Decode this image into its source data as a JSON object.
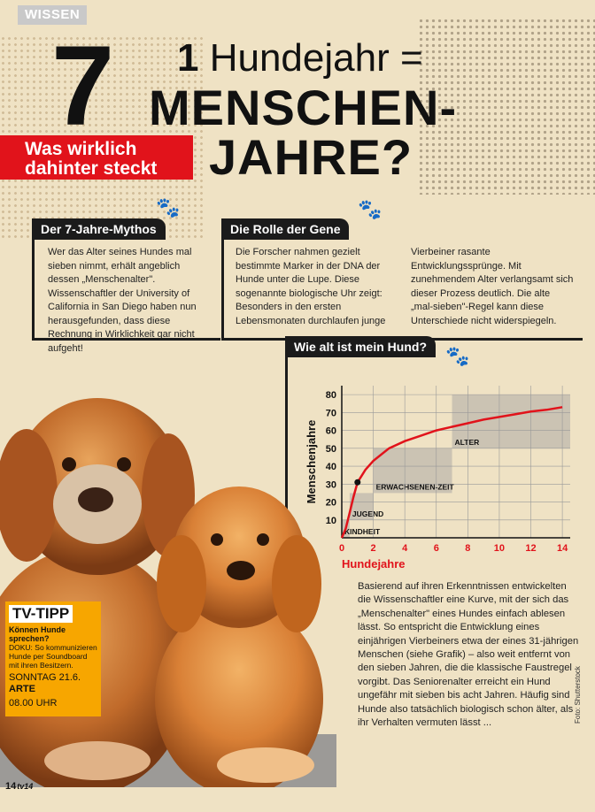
{
  "section": "WISSEN",
  "headline": {
    "number": "7",
    "line1_bold": "1",
    "line1_rest": " Hundejahr =",
    "line2": "MENSCHEN-",
    "line3": "JAHRE?",
    "banner_line1": "Was wirklich",
    "banner_line2": "dahinter steckt"
  },
  "box1": {
    "heading": "Der 7-Jahre-Mythos",
    "text": "Wer das Alter seines Hundes mal sieben nimmt, erhält angeblich dessen „Menschenalter\". Wissenschaftler der University of California in San Diego haben nun herausgefunden, dass diese Rechnung in Wirklichkeit gar nicht aufgeht!"
  },
  "box2": {
    "heading": "Die Rolle der Gene",
    "text_col1": "Die Forscher nahmen gezielt bestimmte Marker in der DNA der Hunde unter die Lupe. Diese sogenannte biologische Uhr zeigt: Besonders in den ersten Lebensmonaten durchlaufen junge",
    "text_col2": "Vierbeiner rasante Entwicklungssprünge. Mit zunehmendem Alter verlangsamt sich dieser Prozess deutlich. Die alte „mal-sieben\"-Regel kann diese Unterschiede nicht widerspiegeln."
  },
  "box3": {
    "heading": "Wie alt ist mein Hund?"
  },
  "chart_data": {
    "type": "line",
    "xlabel": "Hundejahre",
    "ylabel": "Menschenjahre",
    "xlim": [
      0,
      14.5
    ],
    "ylim": [
      0,
      85
    ],
    "xticks": [
      0,
      2,
      4,
      6,
      8,
      10,
      12,
      14
    ],
    "yticks": [
      10,
      20,
      30,
      40,
      50,
      60,
      70,
      80
    ],
    "curve": {
      "x": [
        0,
        0.25,
        0.5,
        0.75,
        1,
        1.5,
        2,
        3,
        4,
        5,
        6,
        7,
        8,
        9,
        10,
        11,
        12,
        13,
        14
      ],
      "y": [
        0,
        5,
        14,
        23,
        31,
        38,
        43,
        50,
        54,
        57,
        60,
        62,
        64,
        66,
        67.5,
        69,
        70.5,
        71.5,
        73
      ]
    },
    "marker": {
      "x": 1,
      "y": 31
    },
    "bands": [
      {
        "label": "KINDHEIT",
        "x": [
          0,
          0.5
        ],
        "y": [
          0,
          10
        ]
      },
      {
        "label": "JUGEND",
        "x": [
          0.5,
          2
        ],
        "y": [
          10,
          25
        ]
      },
      {
        "label": "ERWACHSENEN-ZEIT",
        "x": [
          2,
          7
        ],
        "y": [
          25,
          50
        ]
      },
      {
        "label": "ALTER",
        "x": [
          7,
          14.5
        ],
        "y": [
          50,
          80
        ]
      }
    ],
    "colors": {
      "curve": "#e1131b",
      "band": "#8a8a94",
      "accent": "#e1131b"
    }
  },
  "body2": "Basierend auf ihren Erkenntnissen entwickelten die Wissenschaftler eine Kurve, mit der sich das „Menschenalter\" eines Hundes einfach ablesen lässt. So entspricht die Entwicklung eines einjährigen Vierbeiners etwa der eines 31-jährigen Menschen (siehe Grafik) – also weit entfernt von den sieben Jahren, die die klassische Faustregel vorgibt. Das Seniorenalter erreicht ein Hund ungefähr mit sieben bis acht Jahren. Häufig sind Hunde also tatsächlich biologisch schon älter, als ihr Verhalten vermuten lässt ...",
  "tvtipp": {
    "heading": "TV-TIPP",
    "question": "Können Hunde sprechen?",
    "desc": "DOKU: So kommunizieren Hunde per Soundboard mit ihren Besitzern.",
    "day": "SONNTAG 21.6.",
    "channel": "ARTE",
    "time": "08.00 UHR"
  },
  "footer": {
    "page": "14",
    "magazine": "tv14"
  },
  "photo_credit": "Foto: Shutterstock",
  "colors": {
    "accent": "#e1131b",
    "background": "#efe2c4",
    "tvtipp": "#f7a600"
  }
}
